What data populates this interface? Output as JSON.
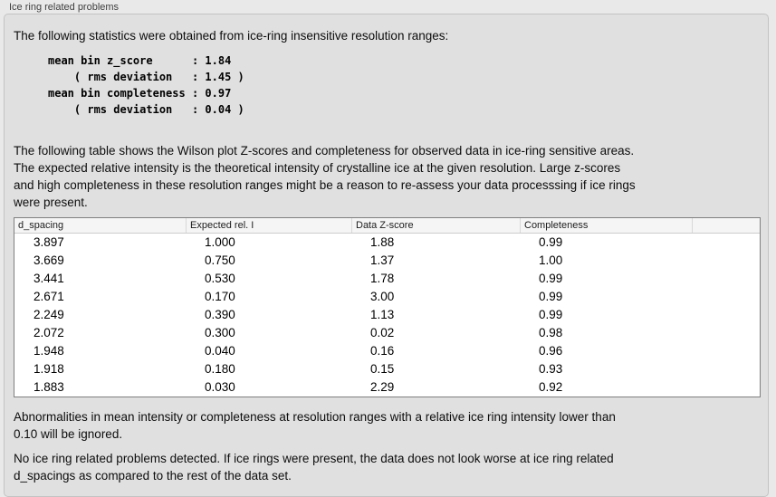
{
  "panel": {
    "title": "Ice ring related problems"
  },
  "intro_text": "The following statistics were obtained from ice-ring insensitive resolution ranges:",
  "stats_block": "mean bin z_score      : 1.84\n    ( rms deviation   : 1.45 )\nmean bin completeness : 0.97\n    ( rms deviation   : 0.04 )",
  "stats": {
    "mean_bin_z_score": "1.84",
    "z_score_rms_deviation": "1.45",
    "mean_bin_completeness": "0.97",
    "completeness_rms_deviation": "0.04"
  },
  "table_intro": "The following table shows the Wilson plot Z-scores and completeness for observed data in ice-ring sensitive areas.\nThe expected relative intensity is the theoretical intensity of crystalline ice at the given resolution. Large z-scores\nand high completeness in these resolution ranges might be a reason to re-assess your data processsing if ice rings\nwere present.",
  "table": {
    "columns": [
      "d_spacing",
      "Expected rel. I",
      "Data Z-score",
      "Completeness",
      ""
    ],
    "rows": [
      [
        "3.897",
        "1.000",
        "1.88",
        "0.99"
      ],
      [
        "3.669",
        "0.750",
        "1.37",
        "1.00"
      ],
      [
        "3.441",
        "0.530",
        "1.78",
        "0.99"
      ],
      [
        "2.671",
        "0.170",
        "3.00",
        "0.99"
      ],
      [
        "2.249",
        "0.390",
        "1.13",
        "0.99"
      ],
      [
        "2.072",
        "0.300",
        "0.02",
        "0.98"
      ],
      [
        "1.948",
        "0.040",
        "0.16",
        "0.96"
      ],
      [
        "1.918",
        "0.180",
        "0.15",
        "0.93"
      ],
      [
        "1.883",
        "0.030",
        "2.29",
        "0.92"
      ]
    ]
  },
  "ignore_note": "Abnormalities in mean intensity or completeness at resolution ranges with a relative ice ring intensity lower than\n0.10 will be ignored.",
  "conclusion": "No ice ring related problems detected. If ice rings were present, the data does not look worse at ice ring related\nd_spacings as compared to the rest of the data set."
}
